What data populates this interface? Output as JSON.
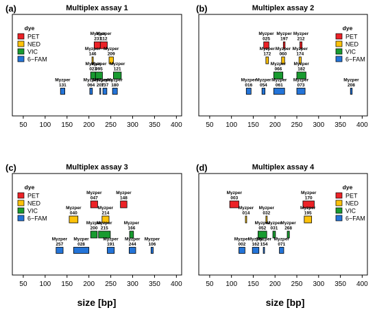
{
  "figure": {
    "xlabel": "size [bp]",
    "legend_title": "dye",
    "dyes": [
      {
        "name": "PET",
        "color": "#ec2227"
      },
      {
        "name": "NED",
        "color": "#fdc20a"
      },
      {
        "name": "VIC",
        "color": "#199b30"
      },
      {
        "name": "6−FAM",
        "color": "#2474d8"
      }
    ]
  },
  "chart_data": [
    {
      "type": "bar",
      "panel": "(a)",
      "title": "Multiplex assay 1",
      "xlabel": "",
      "xlim": [
        25,
        412
      ],
      "xticks": [
        50,
        100,
        150,
        200,
        250,
        300,
        350,
        400
      ],
      "legend_position": "top-left",
      "markers": [
        {
          "name": "Myzper 231",
          "dye": "PET",
          "start": 212,
          "end": 229
        },
        {
          "name": "Myzper 112",
          "dye": "PET",
          "start": 226,
          "end": 242
        },
        {
          "name": "Myzper 146",
          "dye": "NED",
          "start": 207,
          "end": 210
        },
        {
          "name": "Myzper 209",
          "dye": "NED",
          "start": 246,
          "end": 256
        },
        {
          "name": "Myzper 023",
          "dye": "VIC",
          "start": 204,
          "end": 215
        },
        {
          "name": "Myzper 095",
          "dye": "VIC",
          "start": 215,
          "end": 231
        },
        {
          "name": "Myzper 121",
          "dye": "VIC",
          "start": 256,
          "end": 274
        },
        {
          "name": "Myzper 131",
          "dye": "6−FAM",
          "start": 135,
          "end": 145
        },
        {
          "name": "Myzper 064",
          "dye": "6−FAM",
          "start": 202,
          "end": 208
        },
        {
          "name": "Myzper 207",
          "dye": "6−FAM",
          "start": 225,
          "end": 227
        },
        {
          "name": "Myzper 137",
          "dye": "6−FAM",
          "start": 232,
          "end": 241
        },
        {
          "name": "Myzper 180",
          "dye": "6−FAM",
          "start": 254,
          "end": 265
        }
      ]
    },
    {
      "type": "bar",
      "panel": "(b)",
      "title": "Multiplex assay 2",
      "xlabel": "",
      "xlim": [
        25,
        412
      ],
      "xticks": [
        50,
        100,
        150,
        200,
        250,
        300,
        350,
        400
      ],
      "legend_position": "top-right",
      "markers": [
        {
          "name": "Myzper 025",
          "dye": "PET",
          "start": 174,
          "end": 186
        },
        {
          "name": "Myzper 197",
          "dye": "PET",
          "start": 219,
          "end": 223
        },
        {
          "name": "Myzper 212",
          "dye": "PET",
          "start": 257,
          "end": 262
        },
        {
          "name": "Myzper 172",
          "dye": "NED",
          "start": 179,
          "end": 185
        },
        {
          "name": "Myzper 060",
          "dye": "NED",
          "start": 215,
          "end": 222
        },
        {
          "name": "Myzper 174",
          "dye": "NED",
          "start": 255,
          "end": 260
        },
        {
          "name": "Myzper 066",
          "dye": "VIC",
          "start": 197,
          "end": 218
        },
        {
          "name": "Myzper 182",
          "dye": "VIC",
          "start": 250,
          "end": 271
        },
        {
          "name": "Myzper 016",
          "dye": "6−FAM",
          "start": 134,
          "end": 145
        },
        {
          "name": "Myzper 054",
          "dye": "6−FAM",
          "start": 170,
          "end": 177
        },
        {
          "name": "Myzper 061",
          "dye": "6−FAM",
          "start": 197,
          "end": 222
        },
        {
          "name": "Myzper 073",
          "dye": "6−FAM",
          "start": 250,
          "end": 269
        },
        {
          "name": "Myzper 208",
          "dye": "6−FAM",
          "start": 373,
          "end": 377
        }
      ]
    },
    {
      "type": "bar",
      "panel": "(c)",
      "title": "Multiplex assay 3",
      "xlabel": "size [bp]",
      "xlim": [
        25,
        412
      ],
      "xticks": [
        50,
        100,
        150,
        200,
        250,
        300,
        350,
        400
      ],
      "legend_position": "top-left",
      "markers": [
        {
          "name": "Myzper 047",
          "dye": "PET",
          "start": 204,
          "end": 220
        },
        {
          "name": "Myzper 148",
          "dye": "PET",
          "start": 272,
          "end": 287
        },
        {
          "name": "Myzper 040",
          "dye": "NED",
          "start": 155,
          "end": 175
        },
        {
          "name": "Myzper 214",
          "dye": "NED",
          "start": 230,
          "end": 246
        },
        {
          "name": "Myzper 200",
          "dye": "VIC",
          "start": 204,
          "end": 219
        },
        {
          "name": "Myzper 215",
          "dye": "VIC",
          "start": 222,
          "end": 249
        },
        {
          "name": "Myzper 166",
          "dye": "VIC",
          "start": 293,
          "end": 302
        },
        {
          "name": "Myzper 257",
          "dye": "6−FAM",
          "start": 125,
          "end": 141
        },
        {
          "name": "Myzper 028",
          "dye": "6−FAM",
          "start": 165,
          "end": 200
        },
        {
          "name": "Myzper 191",
          "dye": "6−FAM",
          "start": 242,
          "end": 258
        },
        {
          "name": "Myzper 244",
          "dye": "6−FAM",
          "start": 292,
          "end": 307
        },
        {
          "name": "Myzper 106",
          "dye": "6−FAM",
          "start": 342,
          "end": 347
        }
      ]
    },
    {
      "type": "bar",
      "panel": "(d)",
      "title": "Multiplex assay 4",
      "xlabel": "size [bp]",
      "xlim": [
        25,
        412
      ],
      "xticks": [
        50,
        100,
        150,
        200,
        250,
        300,
        350,
        400
      ],
      "legend_position": "top-right",
      "markers": [
        {
          "name": "Myzper 003",
          "dye": "PET",
          "start": 96,
          "end": 117
        },
        {
          "name": "Myzper 170",
          "dye": "PET",
          "start": 264,
          "end": 290
        },
        {
          "name": "Myzper 014",
          "dye": "NED",
          "start": 132,
          "end": 135
        },
        {
          "name": "Myzper 032",
          "dye": "NED",
          "start": 179,
          "end": 182
        },
        {
          "name": "Myzper 195",
          "dye": "NED",
          "start": 267,
          "end": 284
        },
        {
          "name": "Myzper 052",
          "dye": "VIC",
          "start": 161,
          "end": 181
        },
        {
          "name": "Myzper 031",
          "dye": "VIC",
          "start": 195,
          "end": 201
        },
        {
          "name": "Myzper 268",
          "dye": "VIC",
          "start": 228,
          "end": 233
        },
        {
          "name": "Myzper 002",
          "dye": "6−FAM",
          "start": 117,
          "end": 131
        },
        {
          "name": "Myzper 162",
          "dye": "6−FAM",
          "start": 148,
          "end": 163
        },
        {
          "name": "Myzper 154",
          "dye": "6−FAM",
          "start": 173,
          "end": 176
        },
        {
          "name": "Myzper 071",
          "dye": "6−FAM",
          "start": 210,
          "end": 220
        }
      ]
    }
  ]
}
